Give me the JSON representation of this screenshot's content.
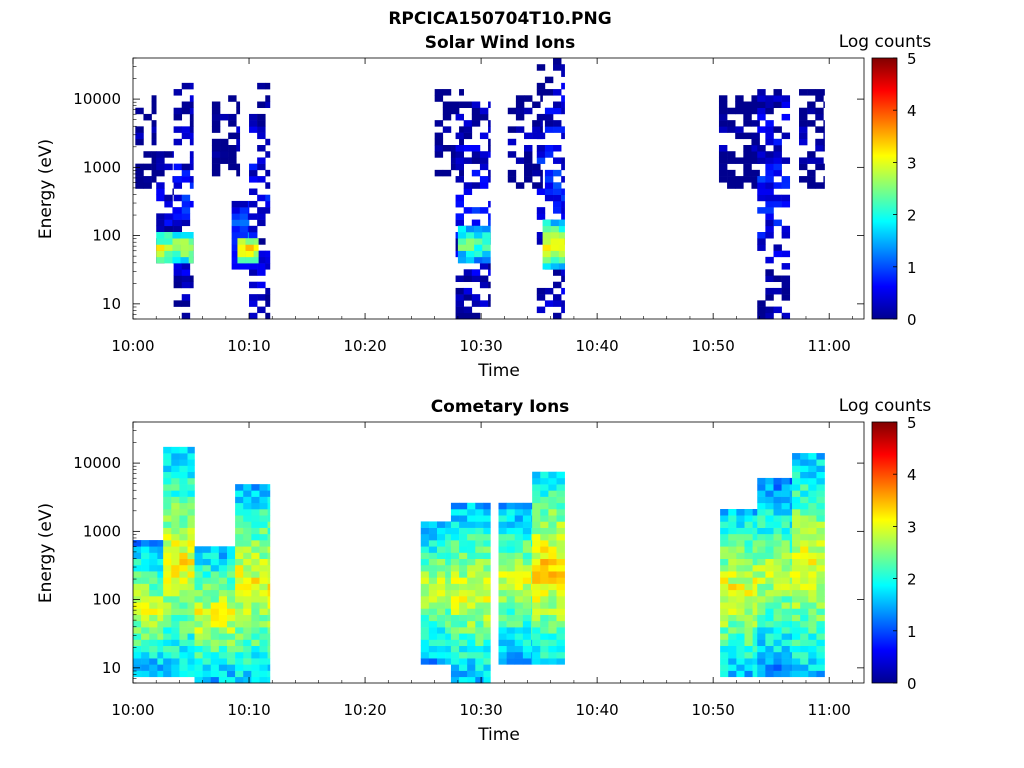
{
  "figure": {
    "title": "RPCICA150704T10.PNG"
  },
  "colormap": {
    "name": "jet",
    "stops": [
      "#00008f",
      "#0000ff",
      "#007fff",
      "#00ffff",
      "#7fff7f",
      "#ffff00",
      "#ff7f00",
      "#ff0000",
      "#800000"
    ]
  },
  "chart_data": [
    {
      "type": "heatmap",
      "title": "Solar Wind Ions",
      "xlabel": "Time",
      "ylabel": "Energy (eV)",
      "colorbar_label": "Log counts",
      "colorbar_ticks": [
        "0",
        "1",
        "2",
        "3",
        "4",
        "5"
      ],
      "clim": [
        0,
        5
      ],
      "x_ticks": [
        "10:00",
        "10:10",
        "10:20",
        "10:30",
        "10:40",
        "10:50",
        "11:00"
      ],
      "y_ticks": [
        "10",
        "100",
        "1000",
        "10000"
      ],
      "y_scale": "log",
      "xlim_minutes": [
        0,
        63
      ],
      "ylim_ev": [
        6,
        40000
      ],
      "bursts": [
        {
          "t_start": 0.2,
          "t_end": 2.0,
          "e_low": 400,
          "e_high": 12000,
          "log_counts": 0.1
        },
        {
          "t_start": 2.0,
          "t_end": 3.5,
          "e_low": 40,
          "e_high": 2000,
          "log_counts": 0.5
        },
        {
          "t_start": 3.5,
          "t_end": 5.2,
          "e_low": 6,
          "e_high": 16000,
          "log_counts": 0.6
        },
        {
          "t_start": 2.0,
          "t_end": 5.2,
          "e_low": 40,
          "e_high": 110,
          "log_counts": 2.0
        },
        {
          "t_start": 6.8,
          "t_end": 9.2,
          "e_low": 800,
          "e_high": 11000,
          "log_counts": 0.1
        },
        {
          "t_start": 8.5,
          "t_end": 10.0,
          "e_low": 30,
          "e_high": 350,
          "log_counts": 1.0
        },
        {
          "t_start": 10.0,
          "t_end": 11.8,
          "e_low": 6,
          "e_high": 16000,
          "log_counts": 0.6
        },
        {
          "t_start": 9.0,
          "t_end": 10.8,
          "e_low": 40,
          "e_high": 100,
          "log_counts": 2.4
        },
        {
          "t_start": 26.0,
          "t_end": 28.5,
          "e_low": 700,
          "e_high": 15000,
          "log_counts": 0.1
        },
        {
          "t_start": 27.8,
          "t_end": 30.8,
          "e_low": 6,
          "e_high": 9000,
          "log_counts": 0.6
        },
        {
          "t_start": 28.0,
          "t_end": 30.8,
          "e_low": 40,
          "e_high": 150,
          "log_counts": 1.6
        },
        {
          "t_start": 32.3,
          "t_end": 35.3,
          "e_low": 500,
          "e_high": 12000,
          "log_counts": 0.2
        },
        {
          "t_start": 34.8,
          "t_end": 37.2,
          "e_low": 6,
          "e_high": 40000,
          "log_counts": 0.7
        },
        {
          "t_start": 35.3,
          "t_end": 37.2,
          "e_low": 35,
          "e_high": 160,
          "log_counts": 2.3
        },
        {
          "t_start": 50.5,
          "t_end": 54.0,
          "e_low": 500,
          "e_high": 12000,
          "log_counts": 0.1
        },
        {
          "t_start": 53.8,
          "t_end": 56.6,
          "e_low": 6,
          "e_high": 15000,
          "log_counts": 0.7
        },
        {
          "t_start": 57.4,
          "t_end": 59.6,
          "e_low": 500,
          "e_high": 13000,
          "log_counts": 0.1
        }
      ]
    },
    {
      "type": "heatmap",
      "title": "Cometary Ions",
      "xlabel": "Time",
      "ylabel": "Energy (eV)",
      "colorbar_label": "Log counts",
      "colorbar_ticks": [
        "0",
        "1",
        "2",
        "3",
        "4",
        "5"
      ],
      "clim": [
        0,
        5
      ],
      "x_ticks": [
        "10:00",
        "10:10",
        "10:20",
        "10:30",
        "10:40",
        "10:50",
        "11:00"
      ],
      "y_ticks": [
        "10",
        "100",
        "1000",
        "10000"
      ],
      "y_scale": "log",
      "xlim_minutes": [
        0,
        63
      ],
      "ylim_ev": [
        6,
        40000
      ],
      "bursts": [
        {
          "t_start": 0.0,
          "t_end": 2.6,
          "e_low": 8,
          "e_high": 700,
          "log_counts": 2.0
        },
        {
          "t_start": 2.6,
          "t_end": 5.3,
          "e_low": 8,
          "e_high": 16000,
          "log_counts": 2.2
        },
        {
          "t_start": 5.3,
          "t_end": 8.8,
          "e_low": 6,
          "e_high": 600,
          "log_counts": 2.1
        },
        {
          "t_start": 8.8,
          "t_end": 11.8,
          "e_low": 6,
          "e_high": 4500,
          "log_counts": 2.2
        },
        {
          "t_start": 24.8,
          "t_end": 27.4,
          "e_low": 12,
          "e_high": 1500,
          "log_counts": 2.0
        },
        {
          "t_start": 27.4,
          "t_end": 30.8,
          "e_low": 6,
          "e_high": 2500,
          "log_counts": 2.1
        },
        {
          "t_start": 31.5,
          "t_end": 34.4,
          "e_low": 12,
          "e_high": 2800,
          "log_counts": 2.0
        },
        {
          "t_start": 34.4,
          "t_end": 37.2,
          "e_low": 12,
          "e_high": 7000,
          "log_counts": 2.4
        },
        {
          "t_start": 50.6,
          "t_end": 53.8,
          "e_low": 8,
          "e_high": 2000,
          "log_counts": 2.2
        },
        {
          "t_start": 53.8,
          "t_end": 56.8,
          "e_low": 8,
          "e_high": 5500,
          "log_counts": 1.9
        },
        {
          "t_start": 56.8,
          "t_end": 59.6,
          "e_low": 8,
          "e_high": 13000,
          "log_counts": 2.2
        }
      ]
    }
  ]
}
